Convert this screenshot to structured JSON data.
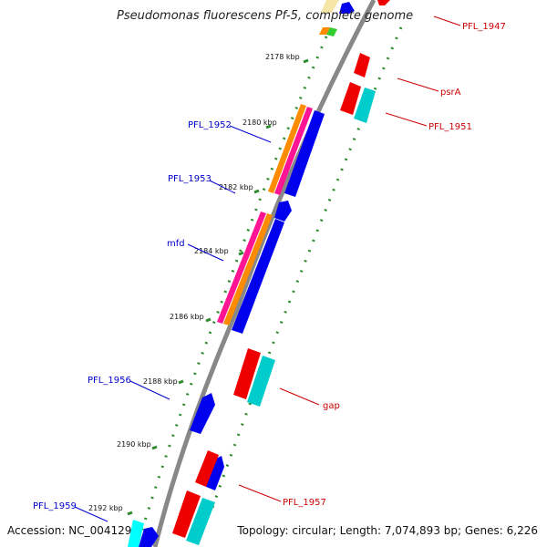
{
  "title": "Pseudomonas fluorescens Pf-5, complete genome",
  "footer": {
    "accession": "Accession: NC_004129",
    "summary": "Topology: circular; Length: 7,074,893 bp; Genes: 6,226"
  },
  "ticks": [
    "2178 kbp",
    "2180 kbp",
    "2182 kbp",
    "2184 kbp",
    "2186 kbp",
    "2188 kbp",
    "2190 kbp",
    "2192 kbp"
  ],
  "labels": {
    "pfl_1947": "PFL_1947",
    "psra": "psrA",
    "pfl_1951": "PFL_1951",
    "pfl_1952": "PFL_1952",
    "pfl_1953": "PFL_1953",
    "mfd": "mfd",
    "pfl_1956": "PFL_1956",
    "gap": "gap",
    "pfl_1957": "PFL_1957",
    "pfl_1959": "PFL_1959"
  },
  "colors": {
    "backbone": "#8c8c8c",
    "dots": "#2e8b2e",
    "forward_label": "#0000cc",
    "reverse_label": "#cc0000",
    "cds_blue": "#0000ee",
    "cds_red": "#ee0000",
    "cds_cyan": "#00cccc",
    "orange": "#ff8c00",
    "pink": "#ff1493"
  }
}
